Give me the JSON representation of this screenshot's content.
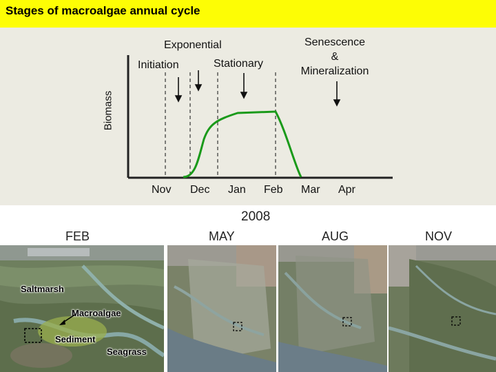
{
  "title": "Stages of macroalgae annual cycle",
  "diagram": {
    "ylabel": "Biomass",
    "stages": {
      "exponential": "Exponential",
      "initiation": "Initiation",
      "stationary": "Stationary",
      "senescence_1": "Senescence",
      "senescence_2": "&",
      "senescence_3": "Mineralization"
    },
    "months": [
      "Nov",
      "Dec",
      "Jan",
      "Feb",
      "Mar",
      "Apr"
    ],
    "curve_color": "#1a9a1a"
  },
  "photos": {
    "year": "2008",
    "months": [
      "FEB",
      "MAY",
      "AUG",
      "NOV"
    ],
    "annotations": {
      "saltmarsh": "Saltmarsh",
      "macroalgae": "Macroalgae",
      "sediment": "Sediment",
      "seagrass": "Seagrass"
    }
  }
}
